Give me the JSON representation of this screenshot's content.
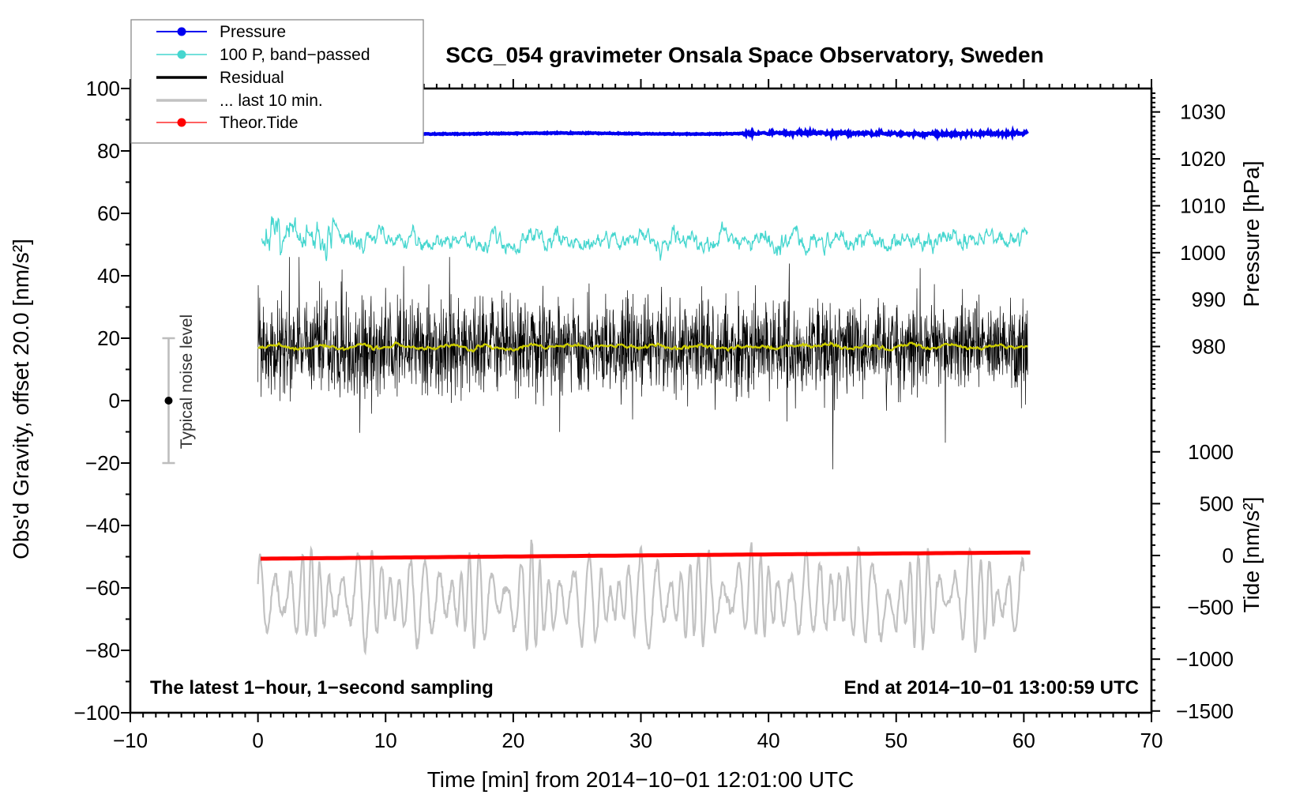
{
  "chart_data": {
    "type": "line",
    "title": "SCG_054 gravimeter Onsala Space Observatory, Sweden",
    "xlabel": "Time [min] from 2014−10−01 12:01:00 UTC",
    "ylabel_left": "Obs'd Gravity, offset 20.0 [nm/s²]",
    "ylabel_right_top": "Pressure [hPa]",
    "ylabel_right_bottom": "Tide [nm/s²]",
    "grid": "off",
    "x_axis": {
      "range": [
        -10,
        70
      ],
      "major_ticks": [
        -10,
        0,
        10,
        20,
        30,
        40,
        50,
        60,
        70
      ],
      "major_labels": [
        "−10",
        "0",
        "10",
        "20",
        "30",
        "40",
        "50",
        "60",
        "70"
      ],
      "minor_step": 1
    },
    "y_axis_left": {
      "range": [
        -100,
        100
      ],
      "major_ticks": [
        100,
        80,
        60,
        40,
        20,
        0,
        -20,
        -40,
        -60,
        -80,
        -100
      ],
      "major_labels": [
        "100",
        "80",
        "60",
        "40",
        "20",
        "0",
        "−20",
        "−40",
        "−60",
        "−80",
        "−100"
      ],
      "minor_step": 10
    },
    "y_axis_pressure": {
      "segment_values": [
        1035,
        968.8
      ],
      "major_ticks": [
        1030,
        1020,
        1010,
        1000,
        990,
        980
      ],
      "major_labels": [
        "1030",
        "1020",
        "1010",
        "1000",
        "990",
        "980"
      ],
      "minor_step": 1
    },
    "y_axis_tide": {
      "segment_values": [
        1509,
        -1517
      ],
      "major_ticks": [
        1000,
        500,
        0,
        -500,
        -1000,
        -1500
      ],
      "major_labels": [
        "1000",
        "500",
        "0",
        "−500",
        "−1000",
        "−1500"
      ],
      "minor_step": 100
    },
    "legend": {
      "position": "top-left",
      "entries": [
        {
          "label": "Pressure",
          "color": "#0000f0",
          "marker": true,
          "line_width": 2
        },
        {
          "label": "100 P, band−passed",
          "color": "#45d6cf",
          "marker": true,
          "line_width": 1.5
        },
        {
          "label": "Residual",
          "color": "#000000",
          "marker": false,
          "line_width": 3.5
        },
        {
          "label": "... last 10 min.",
          "color": "#c2c2c2",
          "marker": false,
          "line_width": 3.5
        },
        {
          "label": "Theor.Tide",
          "color": "#ff0000",
          "marker": true,
          "line_width": 1.3
        }
      ]
    },
    "annotations": {
      "bottom_left": "The latest 1−hour, 1−second sampling",
      "bottom_right": "End at 2014−10−01 13:00:59 UTC",
      "noise_indicator": {
        "label": "Typical noise level",
        "t_min": -7,
        "center_value": 0,
        "half_range": 20,
        "bar_color": "#bdbdbd",
        "dot_color": "#000000"
      }
    },
    "series": [
      {
        "name": "Pressure",
        "axis": "pressure",
        "color": "#0000f0",
        "summary": {
          "mean_hPa": 1025.4,
          "variation_hPa": 0.4,
          "t_span_min": [
            0,
            60
          ]
        },
        "sim": {
          "kind": "flat",
          "seed": 11,
          "n": 1200,
          "t0": 0,
          "t1": 60.3,
          "mean": 1025.4,
          "sine_amp": 0.1,
          "sine_w": 0.33,
          "noise": 0.05,
          "late_t": 38,
          "late_noise": 0.16,
          "stroke": 4.2
        }
      },
      {
        "name": "100 P, band−passed",
        "axis": "gravity",
        "color": "#45d6cf",
        "summary": {
          "mean": 51.5,
          "typical_amplitude": 3.5,
          "burst_amplitude_early": 8,
          "t_span_min": [
            0.3,
            60.3
          ]
        },
        "sim": {
          "kind": "band",
          "seed": 7,
          "n": 1400,
          "t0": 0.3,
          "t1": 60.3,
          "mean": 51.6,
          "ema": 0.22,
          "scale": 5.0,
          "sine_amp": 1.2,
          "sine_w": 2.1,
          "burst_until": 6,
          "burst_gain": 1.7,
          "stroke": 1.3
        }
      },
      {
        "name": "Residual",
        "axis": "gravity",
        "color": "#000000",
        "summary": {
          "mean": 17,
          "typical_amplitude": 14,
          "extremes": [
            -22,
            46
          ],
          "t_span_min": [
            0,
            60.3
          ]
        },
        "sim": {
          "kind": "spiky",
          "seed": 23,
          "n": 2600,
          "t0": 0,
          "t1": 60.3,
          "mean": 17.2,
          "sigma": 7.2,
          "spike_p": 0.013,
          "spike_scale": 19,
          "clip": [
            -22,
            46
          ],
          "stroke": 0.7
        }
      },
      {
        "name": "Residual smoothed (yellow overlay)",
        "axis": "gravity",
        "color": "#cccc00",
        "summary": {
          "mean": 17.3,
          "typical_amplitude": 1.2,
          "t_span_min": [
            0,
            60.3
          ]
        },
        "sim": {
          "kind": "band",
          "seed": 5,
          "n": 700,
          "t0": 0,
          "t1": 60.3,
          "mean": 17.3,
          "ema": 0.25,
          "scale": 1.1,
          "sine_amp": 0.5,
          "sine_w": 1.9,
          "burst_until": 0,
          "burst_gain": 1,
          "stroke": 2.4
        }
      },
      {
        "name": "... last 10 min.",
        "axis": "gravity",
        "color": "#c2c2c2",
        "summary": {
          "mean": -63,
          "typical_amplitude": 12,
          "oscillation_period_min": 0.95,
          "t_span_min": [
            0,
            60
          ]
        },
        "sim": {
          "kind": "osc",
          "seed": 41,
          "n": 1500,
          "t0": 0,
          "t1": 60,
          "mean": -63.5,
          "amp": 10,
          "amp_mod": 5,
          "amp_mod_w": 0.23,
          "period": 0.95,
          "period_mod": 0.3,
          "period_mod_w": 0.17,
          "noise": 5.5,
          "ema": 0.18,
          "clip": [
            -87,
            -36
          ],
          "stroke": 2.2
        }
      },
      {
        "name": "Theor.Tide",
        "axis": "tide",
        "color": "#ff0000",
        "summary": {
          "start_value": -31,
          "end_value": 29,
          "unit": "nm/s²",
          "shape": "nearly linear, slowly rising",
          "t_span_min": [
            0,
            60.5
          ]
        },
        "sim": {
          "kind": "trend",
          "seed": 3,
          "n": 140,
          "t0": 0.2,
          "t1": 60.5,
          "v0": -31,
          "v1": 29,
          "curve": 2.0,
          "stroke": 5
        }
      }
    ]
  }
}
